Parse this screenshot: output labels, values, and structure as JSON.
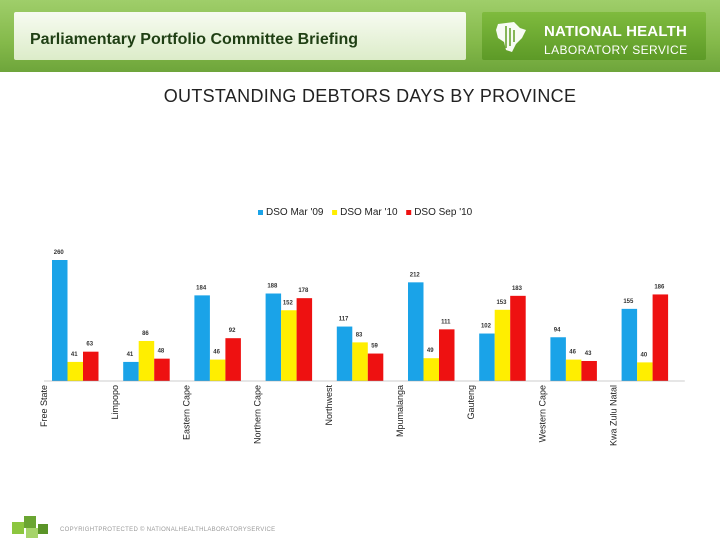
{
  "header": {
    "title": "Parliamentary Portfolio Committee Briefing",
    "logo_line1": "NATIONAL HEALTH",
    "logo_line2": "LABORATORY SERVICE"
  },
  "footer": {
    "text": "COPYRIGHTPROTECTED © NATIONALHEALTHLABORATORYSERVICE"
  },
  "chart_data": {
    "type": "bar",
    "title": "OUTSTANDING DEBTORS DAYS BY PROVINCE",
    "categories": [
      "Free State",
      "Limpopo",
      "Eastern Cape",
      "Northern Cape",
      "Northwest",
      "Mpumalanga",
      "Gauteng",
      "Western Cape",
      "Kwa Zulu Natal"
    ],
    "series": [
      {
        "name": "DSO Mar '09",
        "color": "#1aa3e8",
        "values": [
          260,
          41,
          184,
          188,
          117,
          212,
          102,
          94,
          155
        ]
      },
      {
        "name": "DSO Mar '10",
        "color": "#ffee00",
        "values": [
          41,
          86,
          46,
          152,
          83,
          49,
          153,
          46,
          40
        ]
      },
      {
        "name": "DSO Sep '10",
        "color": "#ee1111",
        "values": [
          63,
          48,
          92,
          178,
          59,
          111,
          183,
          43,
          186
        ]
      }
    ],
    "ylim": [
      0,
      260
    ],
    "legend": "top-center",
    "grid": false,
    "data_labels": true
  }
}
